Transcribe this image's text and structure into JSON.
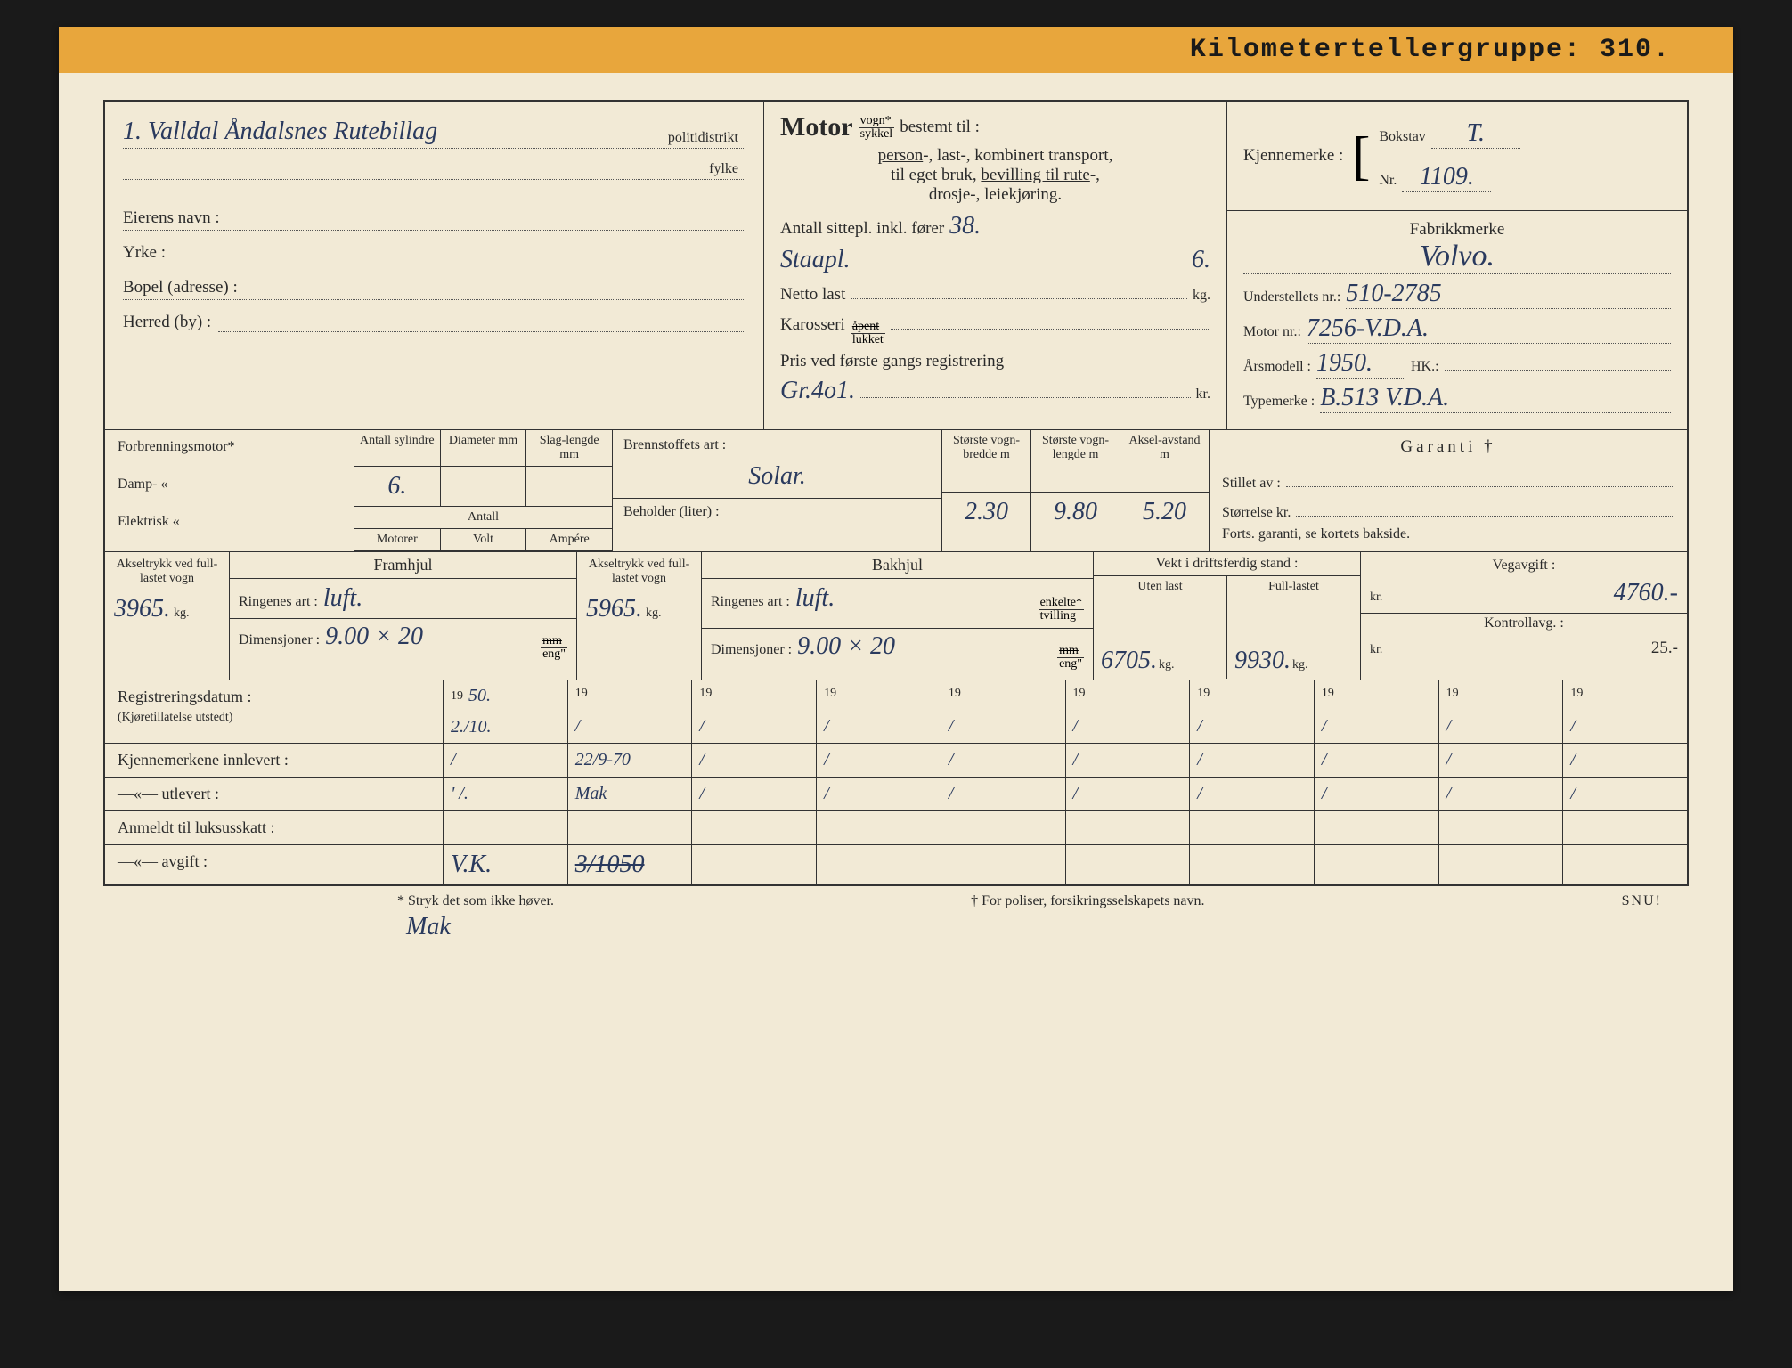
{
  "header": {
    "label": "Kilometertellergruppe:",
    "value": "310."
  },
  "top_left": {
    "line1_value": "1. Valldal Åndalsnes Rutebillag",
    "line1_suffix": "politidistrikt",
    "line2_suffix": "fylke",
    "owner_label": "Eierens navn :",
    "owner_value": "",
    "yrke_label": "Yrke :",
    "yrke_value": "",
    "bopel_label": "Bopel (adresse) :",
    "bopel_value": "",
    "herred_label": "Herred (by) :",
    "herred_value": ""
  },
  "motor": {
    "title": "Motor",
    "frac_top": "vogn*",
    "frac_bot": "sykkel",
    "bestemt": "bestemt til :",
    "line2": "person-, last-, kombinert transport,",
    "line3": "til eget bruk, bevilling til rute-,",
    "line4": "drosje-, leiekjøring.",
    "antall_label": "Antall sittepl. inkl. fører",
    "antall_value": "38.",
    "staa_label": "Staapl.",
    "staa_value": "6.",
    "netto_label": "Netto last",
    "netto_unit": "kg.",
    "karosseri_label": "Karosseri",
    "karosseri_top": "åpent",
    "karosseri_bot": "lukket",
    "pris_label": "Pris ved første gangs registrering",
    "pris_value": "Gr.4o1.",
    "pris_unit": "kr."
  },
  "right": {
    "kjennemerke_label": "Kjennemerke :",
    "bokstav_label": "Bokstav",
    "bokstav_value": "T.",
    "nr_label": "Nr.",
    "nr_value": "1109.",
    "fabrikk_label": "Fabrikkmerke",
    "fabrikk_value": "Volvo.",
    "understell_label": "Understellets nr.:",
    "understell_value": "510-2785",
    "motornr_label": "Motor nr.:",
    "motornr_value": "7256-V.D.A.",
    "aarsmodell_label": "Årsmodell :",
    "aarsmodell_value": "1950.",
    "hk_label": "HK.:",
    "typemerke_label": "Typemerke :",
    "typemerke_value": "B.513 V.D.A."
  },
  "spec": {
    "forbrenning_label": "Forbrenningsmotor*",
    "damp_label": "Damp-       «",
    "elektrisk_label": "Elektrisk    «",
    "col_antall_syl": "Antall sylindre",
    "col_diameter": "Diameter mm",
    "col_slag": "Slag-lengde mm",
    "antall_syl_value": "6.",
    "col_motorer": "Motorer",
    "col_antall": "Antall",
    "col_volt": "Volt",
    "col_ampere": "Ampére",
    "brennstoff_label": "Brennstoffets art :",
    "brennstoff_value": "Solar.",
    "beholder_label": "Beholder (liter) :",
    "bredde_label": "Største vogn-bredde m",
    "bredde_value": "2.30",
    "lengde_label": "Største vogn-lengde m",
    "lengde_value": "9.80",
    "aksel_label": "Aksel-avstand m",
    "aksel_value": "5.20",
    "garanti_label": "Garanti †",
    "stillet_label": "Stillet av :",
    "storrelse_label": "Størrelse kr.",
    "forts_label": "Forts. garanti, se kortets bakside."
  },
  "wheels": {
    "fram_title": "Framhjul",
    "bak_title": "Bakhjul",
    "akseltrykk_label": "Akseltrykk ved full-lastet vogn",
    "fram_aksel_value": "3965.",
    "fram_ring_label": "Ringenes art :",
    "fram_ring_value": "luft.",
    "fram_dim_label": "Dimensjoner :",
    "fram_dim_value": "9.00 × 20",
    "bak_aksel_value": "5965.",
    "bak_ring_label": "Ringenes art :",
    "bak_ring_value": "luft.",
    "bak_enkelte_top": "enkelte*",
    "bak_enkelte_bot": "tvilling",
    "bak_dim_label": "Dimensjoner :",
    "bak_dim_value": "9.00 × 20",
    "unit_kg": "kg.",
    "unit_frac_top": "mm",
    "unit_frac_bot": "eng\"",
    "vekt_title": "Vekt i driftsferdig stand :",
    "uten_label": "Uten last",
    "uten_value": "6705.",
    "full_label": "Full-lastet",
    "full_value": "9930.",
    "vegavgift_label": "Vegavgift :",
    "vegavgift_value": "4760.-",
    "kontroll_label": "Kontrollavg. :",
    "kontroll_value": "25.-",
    "kr": "kr."
  },
  "reg": {
    "row1_label": "Registreringsdatum :",
    "row1_sub": "(Kjøretillatelse utstedt)",
    "row2_label": "Kjennemerkene innlevert :",
    "row3_label": "—«—        utlevert :",
    "row4_label": "Anmeldt til luksusskatt :",
    "row5_label": "—«—        avgift :",
    "year_prefix": "19",
    "cells": [
      {
        "year": "50.",
        "r1": "2./10.",
        "r2": "/",
        "r3": "' /."
      },
      {
        "year": "",
        "r1": "/",
        "r2": "22/9-70",
        "r3": "Mak"
      },
      {
        "year": "",
        "r1": "/",
        "r2": "",
        "r3": ""
      },
      {
        "year": "",
        "r1": "/",
        "r2": "",
        "r3": ""
      },
      {
        "year": "",
        "r1": "/",
        "r2": "",
        "r3": ""
      },
      {
        "year": "",
        "r1": "/",
        "r2": "",
        "r3": ""
      },
      {
        "year": "",
        "r1": "/",
        "r2": "",
        "r3": ""
      },
      {
        "year": "",
        "r1": "/",
        "r2": "",
        "r3": ""
      },
      {
        "year": "",
        "r1": "/",
        "r2": "",
        "r3": ""
      },
      {
        "year": "",
        "r1": "/",
        "r2": "",
        "r3": ""
      }
    ],
    "row5_val1": "V.K.",
    "row5_val2": "3/1050",
    "row5_note": "Mak"
  },
  "footer": {
    "note1": "* Stryk det som ikke høver.",
    "note2": "† For poliser, forsikringsselskapets navn.",
    "snu": "SNU!"
  },
  "colors": {
    "paper": "#f2ead6",
    "header_bg": "#e8a63c",
    "ink": "#2a2a2a",
    "pen": "#2a3a5e",
    "border": "#333333"
  }
}
